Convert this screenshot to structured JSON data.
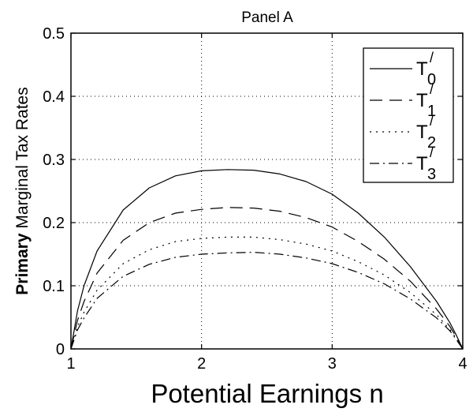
{
  "chart_data": {
    "type": "line",
    "title": "Panel A",
    "xlabel": "Potential Earnings n",
    "ylabel_bold": "Primary",
    "ylabel_rest": "Marginal Tax Rates",
    "xlim": [
      1,
      4
    ],
    "ylim": [
      0,
      0.5
    ],
    "xticks": [
      "1",
      "2",
      "3",
      "4"
    ],
    "yticks": [
      "0",
      "0.1",
      "0.2",
      "0.3",
      "0.4",
      "0.5"
    ],
    "grid": true,
    "legend_position": "top-right",
    "x": [
      1.0,
      1.05,
      1.1,
      1.2,
      1.4,
      1.6,
      1.8,
      2.0,
      2.2,
      2.4,
      2.6,
      2.8,
      3.0,
      3.2,
      3.4,
      3.6,
      3.8,
      3.9,
      3.95,
      4.0
    ],
    "series": [
      {
        "name": "T",
        "sub": "0",
        "dash": "",
        "values": [
          0.0,
          0.06,
          0.1,
          0.155,
          0.22,
          0.255,
          0.274,
          0.282,
          0.284,
          0.283,
          0.277,
          0.265,
          0.245,
          0.215,
          0.177,
          0.13,
          0.075,
          0.042,
          0.022,
          0.0
        ]
      },
      {
        "name": "T",
        "sub": "1",
        "dash": "16 9",
        "values": [
          0.0,
          0.045,
          0.075,
          0.12,
          0.172,
          0.2,
          0.215,
          0.221,
          0.224,
          0.223,
          0.218,
          0.208,
          0.193,
          0.17,
          0.142,
          0.107,
          0.063,
          0.036,
          0.019,
          0.0
        ]
      },
      {
        "name": "T",
        "sub": "2",
        "dash": "2 6",
        "values": [
          0.0,
          0.035,
          0.058,
          0.093,
          0.135,
          0.157,
          0.17,
          0.175,
          0.177,
          0.177,
          0.173,
          0.166,
          0.155,
          0.138,
          0.117,
          0.089,
          0.054,
          0.031,
          0.017,
          0.0
        ]
      },
      {
        "name": "T",
        "sub": "3",
        "dash": "12 5 2 5",
        "values": [
          0.0,
          0.03,
          0.049,
          0.08,
          0.115,
          0.134,
          0.145,
          0.15,
          0.152,
          0.153,
          0.15,
          0.144,
          0.135,
          0.121,
          0.103,
          0.079,
          0.049,
          0.029,
          0.015,
          0.0
        ]
      }
    ]
  }
}
